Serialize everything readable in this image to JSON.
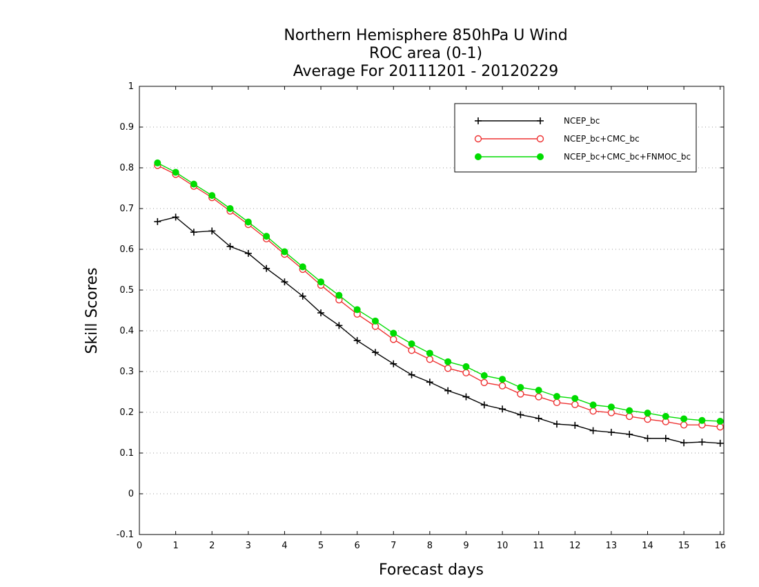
{
  "chart_data": {
    "type": "line",
    "title_lines": [
      "Northern Hemisphere 850hPa U Wind",
      "ROC area (0-1)",
      "Average For 20111201 - 20120229"
    ],
    "xlabel": "Forecast days",
    "ylabel": "Skill Scores",
    "xlim": [
      0,
      16.1
    ],
    "ylim": [
      -0.1,
      1
    ],
    "x_ticks": [
      0,
      1,
      2,
      3,
      4,
      5,
      6,
      7,
      8,
      9,
      10,
      11,
      12,
      13,
      14,
      15,
      16
    ],
    "x_tick_labels": [
      "0",
      "1",
      "2",
      "3",
      "4",
      "5",
      "6",
      "7",
      "8",
      "9",
      "10",
      "11",
      "12",
      "13",
      "14",
      "15",
      "16"
    ],
    "y_ticks": [
      -0.1,
      0,
      0.1,
      0.2,
      0.3,
      0.4,
      0.5,
      0.6,
      0.7,
      0.8,
      0.9,
      1
    ],
    "y_tick_labels": [
      "-0.1",
      "0",
      "0.1",
      "0.2",
      "0.3",
      "0.4",
      "0.5",
      "0.6",
      "0.7",
      "0.8",
      "0.9",
      "1"
    ],
    "grid": "horizontal-dotted",
    "legend_position": "top-right",
    "x": [
      0.5,
      1,
      1.5,
      2,
      2.5,
      3,
      3.5,
      4,
      4.5,
      5,
      5.5,
      6,
      6.5,
      7,
      7.5,
      8,
      8.5,
      9,
      9.5,
      10,
      10.5,
      11,
      11.5,
      12,
      12.5,
      13,
      13.5,
      14,
      14.5,
      15,
      15.5,
      16
    ],
    "series": [
      {
        "name": "NCEP_bc",
        "color": "#000000",
        "marker": "plus",
        "values": [
          0.668,
          0.679,
          0.642,
          0.645,
          0.607,
          0.59,
          0.553,
          0.52,
          0.485,
          0.444,
          0.413,
          0.376,
          0.347,
          0.319,
          0.292,
          0.274,
          0.253,
          0.238,
          0.218,
          0.208,
          0.194,
          0.185,
          0.171,
          0.168,
          0.155,
          0.151,
          0.146,
          0.136,
          0.136,
          0.125,
          0.127,
          0.124
        ]
      },
      {
        "name": "NCEP_bc+CMC_bc",
        "color": "#ee3030",
        "marker": "open-circle",
        "values": [
          0.806,
          0.784,
          0.755,
          0.727,
          0.694,
          0.661,
          0.626,
          0.588,
          0.551,
          0.512,
          0.476,
          0.441,
          0.411,
          0.379,
          0.352,
          0.33,
          0.308,
          0.297,
          0.273,
          0.265,
          0.245,
          0.238,
          0.224,
          0.219,
          0.203,
          0.199,
          0.19,
          0.183,
          0.177,
          0.169,
          0.169,
          0.164
        ]
      },
      {
        "name": "NCEP_bc+CMC_bc+FNMOC_bc",
        "color": "#00dc00",
        "marker": "filled-circle",
        "values": [
          0.812,
          0.789,
          0.76,
          0.732,
          0.7,
          0.667,
          0.632,
          0.594,
          0.557,
          0.52,
          0.487,
          0.452,
          0.424,
          0.394,
          0.368,
          0.345,
          0.324,
          0.312,
          0.29,
          0.281,
          0.261,
          0.254,
          0.239,
          0.234,
          0.218,
          0.213,
          0.204,
          0.198,
          0.19,
          0.184,
          0.18,
          0.178
        ]
      }
    ]
  }
}
